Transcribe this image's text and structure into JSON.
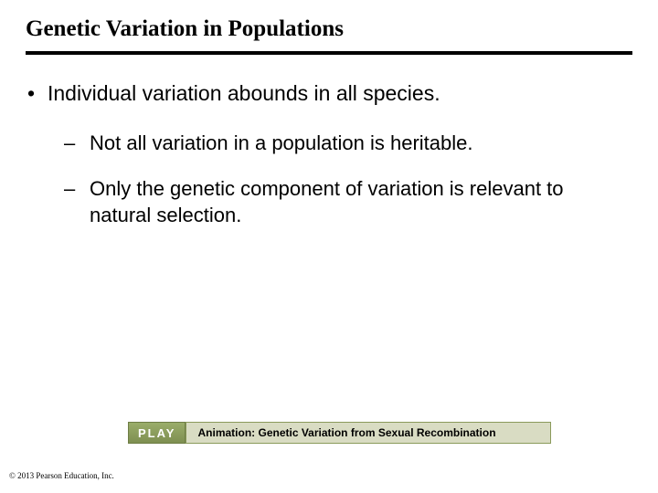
{
  "title": "Genetic Variation in Populations",
  "bullets": {
    "l1": "Individual variation abounds in all species.",
    "l2a": "Not all variation in a population is heritable.",
    "l2b": "Only the genetic component of variation is relevant to natural selection."
  },
  "play": {
    "button_label": "PLAY",
    "animation_label": "Animation: Genetic Variation from Sexual Recombination"
  },
  "copyright": "© 2013 Pearson Education, Inc.",
  "colors": {
    "rule": "#000000",
    "play_bg": "#8a9a5b",
    "play_text": "#ffffff",
    "label_bg": "#d9dcc3",
    "label_border": "#8a9a5b"
  }
}
